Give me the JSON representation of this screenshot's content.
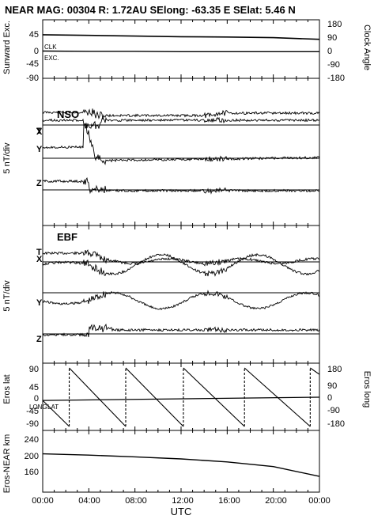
{
  "header": {
    "title": "NEAR MAG: 00304  R: 1.72AU  SElong:  -63.35 E  SElat:    5.46 N"
  },
  "footer": {
    "x_axis_label": "UTC",
    "time_ticks": [
      "00:00",
      "04:00",
      "08:00",
      "12:00",
      "16:00",
      "20:00",
      "00:00"
    ]
  },
  "colors": {
    "ink": "#000000",
    "background": "#ffffff"
  },
  "chart_data": [
    {
      "type": "line",
      "panel": "sunward-excursion",
      "ylabel": "Sunward Exc.",
      "yticks": [
        "45",
        "0",
        "-45",
        "-90"
      ],
      "ylabel_right": "Clock Angle",
      "yticks_right": [
        "180",
        "90",
        "0",
        "-90",
        "-180"
      ],
      "inline_labels": [
        "CLK",
        "EXC."
      ],
      "x": [
        0,
        4,
        8,
        12,
        16,
        20,
        24
      ],
      "series": [
        {
          "name": "CLK",
          "values": [
            44,
            42,
            40,
            38,
            37,
            35,
            30
          ]
        },
        {
          "name": "EXC.",
          "values": [
            -6,
            -7,
            -7,
            -8,
            -8,
            -8,
            -8
          ]
        }
      ]
    },
    {
      "type": "line",
      "panel": "nso-field",
      "title": "NSO",
      "ylabel": "5 nT/div",
      "components": [
        "T",
        "X",
        "Y",
        "Z"
      ]
    },
    {
      "type": "line",
      "panel": "ebf-field",
      "title": "EBF",
      "ylabel": "5 nT/div",
      "components": [
        "T",
        "X",
        "Y",
        "Z"
      ]
    },
    {
      "type": "line",
      "panel": "eros-position",
      "ylabel": "Eros lat",
      "yticks": [
        "90",
        "45",
        "0",
        "-45",
        "-90"
      ],
      "ylabel_right": "Eros long",
      "yticks_right": [
        "180",
        "90",
        "0",
        "-90",
        "-180"
      ],
      "inline_labels": [
        "LONG",
        "LAT"
      ],
      "series": [
        {
          "name": "LAT",
          "x": [
            0,
            24
          ],
          "values": [
            -10,
            0
          ]
        },
        {
          "name": "LONG",
          "x": [
            0,
            2.3,
            2.3,
            7.2,
            7.2,
            12.2,
            12.2,
            17.5,
            17.5,
            23.2,
            23.2,
            24
          ],
          "values": [
            -20,
            -180,
            180,
            -180,
            180,
            -180,
            180,
            -180,
            180,
            -180,
            180,
            140
          ]
        }
      ]
    },
    {
      "type": "line",
      "panel": "eros-near-distance",
      "ylabel": "Eros-NEAR km",
      "yticks": [
        "240",
        "200",
        "160"
      ],
      "x": [
        0,
        4,
        8,
        12,
        16,
        20,
        24
      ],
      "series": [
        {
          "name": "distance",
          "values": [
            200,
            197,
            193,
            188,
            181,
            170,
            147
          ]
        }
      ],
      "ylim": [
        110,
        255
      ]
    }
  ]
}
